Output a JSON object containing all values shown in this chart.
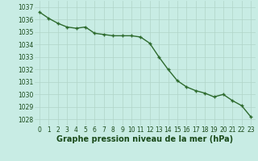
{
  "x": [
    0,
    1,
    2,
    3,
    4,
    5,
    6,
    7,
    8,
    9,
    10,
    11,
    12,
    13,
    14,
    15,
    16,
    17,
    18,
    19,
    20,
    21,
    22,
    23
  ],
  "y": [
    1036.6,
    1036.1,
    1035.7,
    1035.4,
    1035.3,
    1035.4,
    1034.9,
    1034.8,
    1034.7,
    1034.7,
    1034.7,
    1034.6,
    1034.1,
    1033.0,
    1032.0,
    1031.1,
    1030.6,
    1030.3,
    1030.1,
    1029.8,
    1030.0,
    1029.5,
    1029.1,
    1028.2
  ],
  "line_color": "#2d6a2d",
  "marker": "+",
  "marker_color": "#2d6a2d",
  "bg_color": "#c8ece4",
  "grid_color": "#b0d4c8",
  "xlabel": "Graphe pression niveau de la mer (hPa)",
  "xlabel_color": "#1a4a1a",
  "tick_color": "#1a4a1a",
  "ylim": [
    1027.5,
    1037.5
  ],
  "xlim": [
    -0.5,
    23.5
  ],
  "yticks": [
    1028,
    1029,
    1030,
    1031,
    1032,
    1033,
    1034,
    1035,
    1036,
    1037
  ],
  "xticks": [
    0,
    1,
    2,
    3,
    4,
    5,
    6,
    7,
    8,
    9,
    10,
    11,
    12,
    13,
    14,
    15,
    16,
    17,
    18,
    19,
    20,
    21,
    22,
    23
  ],
  "tick_fontsize": 5.5,
  "xlabel_fontsize": 7,
  "linewidth": 1.0,
  "markersize": 3.5,
  "markeredgewidth": 1.0
}
